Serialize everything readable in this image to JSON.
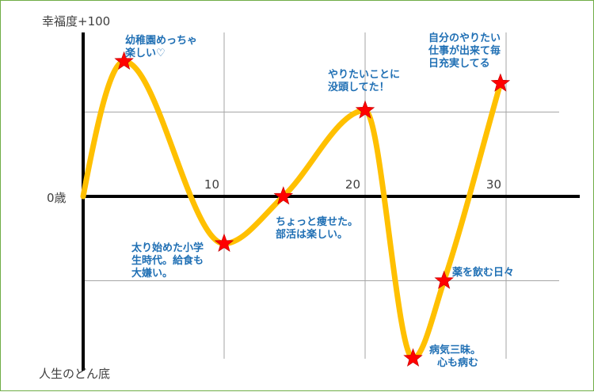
{
  "chart_data": {
    "type": "line",
    "title": "",
    "ylabel_top": "幸福度+100",
    "ylabel_zero": "0歳",
    "ylabel_bottom": "人生のどん底",
    "xlim": [
      0,
      34
    ],
    "ylim": [
      -100,
      100
    ],
    "x_ticks": [
      {
        "x": 10,
        "label": "10"
      },
      {
        "x": 20,
        "label": "20"
      },
      {
        "x": 30,
        "label": "30"
      }
    ],
    "y_gridlines": [
      50,
      -50
    ],
    "grid": true,
    "curve_points": [
      {
        "x": 0,
        "y": 0
      },
      {
        "x": 2.9,
        "y": 80
      },
      {
        "x": 10,
        "y": -28
      },
      {
        "x": 14.2,
        "y": 0
      },
      {
        "x": 20,
        "y": 51
      },
      {
        "x": 23.4,
        "y": -96
      },
      {
        "x": 25.6,
        "y": -50
      },
      {
        "x": 29.6,
        "y": 67
      }
    ],
    "events": [
      {
        "x": 2.9,
        "y": 80,
        "lines": [
          "幼稚園めっちゃ",
          "楽しい♡"
        ]
      },
      {
        "x": 10,
        "y": -28,
        "lines": [
          "太り始めた小学",
          "生時代。給食も",
          "大嫌い。"
        ]
      },
      {
        "x": 14.2,
        "y": 0,
        "lines": [
          "ちょっと痩せた。",
          "部活は楽しい。"
        ]
      },
      {
        "x": 20,
        "y": 51,
        "lines": [
          "やりたいことに",
          "没頭してた！"
        ]
      },
      {
        "x": 23.4,
        "y": -96,
        "lines": [
          "病気三昧。",
          "心も病む"
        ]
      },
      {
        "x": 25.6,
        "y": -50,
        "lines": [
          "薬を飲む日々"
        ]
      },
      {
        "x": 29.6,
        "y": 67,
        "lines": [
          "自分のやりたい",
          "仕事が出来て毎",
          "日充実してる"
        ]
      }
    ],
    "colors": {
      "line": "#FFC000",
      "marker": "#FF0000",
      "annotation_text": "#1F6FB4",
      "axis": "#000000",
      "grid": "#A6A6A6",
      "border": "#70AD47",
      "label_text": "#404040"
    }
  }
}
